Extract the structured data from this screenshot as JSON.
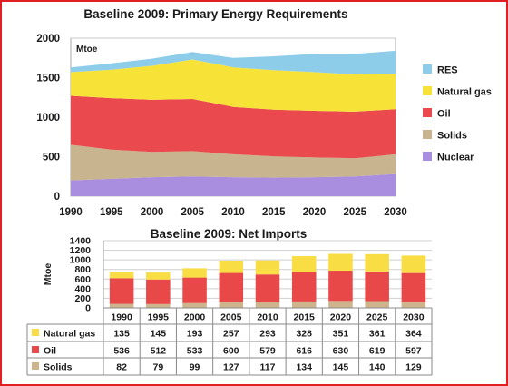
{
  "chart_data": [
    {
      "type": "area",
      "stacked": true,
      "title": "Baseline 2009: Primary Energy Requirements",
      "unit": "Mtoe",
      "x": [
        1990,
        1995,
        2000,
        2005,
        2010,
        2015,
        2020,
        2025,
        2030
      ],
      "ylim": [
        0,
        2000
      ],
      "yticks": [
        0,
        500,
        1000,
        1500,
        2000
      ],
      "grid": true,
      "legend_position": "right",
      "series": [
        {
          "name": "Nuclear",
          "color": "#a98ee0",
          "values": [
            200,
            220,
            240,
            250,
            240,
            235,
            240,
            250,
            280
          ]
        },
        {
          "name": "Solids",
          "color": "#c8b48e",
          "values": [
            450,
            370,
            320,
            320,
            290,
            270,
            250,
            230,
            250
          ]
        },
        {
          "name": "Oil",
          "color": "#ea4a4e",
          "values": [
            620,
            650,
            660,
            660,
            600,
            590,
            590,
            590,
            570
          ]
        },
        {
          "name": "Natural gas",
          "color": "#f7e238",
          "values": [
            300,
            360,
            430,
            500,
            500,
            500,
            490,
            470,
            450
          ]
        },
        {
          "name": "RES",
          "color": "#8ecdea",
          "values": [
            60,
            80,
            90,
            95,
            120,
            175,
            230,
            260,
            290
          ]
        }
      ]
    },
    {
      "type": "bar",
      "stacked": true,
      "title": "Baseline 2009: Net Imports",
      "ylabel": "Mtoe",
      "categories": [
        "1990",
        "1995",
        "2000",
        "2005",
        "2010",
        "2015",
        "2020",
        "2025",
        "2030"
      ],
      "ylim": [
        0,
        1400
      ],
      "yticks": [
        0,
        200,
        400,
        600,
        800,
        1000,
        1200,
        1400
      ],
      "grid": true,
      "series": [
        {
          "name": "Solids",
          "color": "#cdb48c",
          "values": [
            82,
            79,
            99,
            127,
            117,
            134,
            145,
            140,
            129
          ]
        },
        {
          "name": "Oil",
          "color": "#e84848",
          "values": [
            536,
            512,
            533,
            600,
            579,
            616,
            630,
            619,
            597
          ]
        },
        {
          "name": "Natural gas",
          "color": "#f9dd45",
          "values": [
            135,
            145,
            193,
            257,
            293,
            328,
            351,
            361,
            364
          ]
        }
      ],
      "table_rows": [
        {
          "label": "Natural gas",
          "series": "Natural gas"
        },
        {
          "label": "Oil",
          "series": "Oil"
        },
        {
          "label": "Solids",
          "series": "Solids"
        }
      ]
    }
  ]
}
